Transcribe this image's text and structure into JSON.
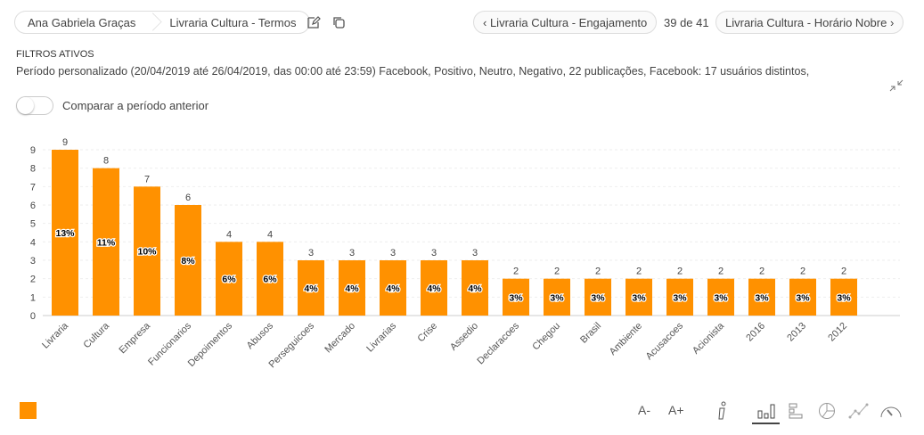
{
  "breadcrumb": {
    "items": [
      "Ana Gabriela Graças",
      "Livraria Cultura - Termos"
    ]
  },
  "nav": {
    "prev": "Livraria Cultura - Engajamento",
    "count": "39 de 41",
    "next": "Livraria Cultura - Horário Nobre"
  },
  "filters": {
    "title": "FILTROS ATIVOS",
    "text": "Período personalizado (20/04/2019 até 26/04/2019, das 00:00 até 23:59) Facebook, Positivo, Neutro, Negativo, 22 publicações, Facebook: 17 usuários distintos,"
  },
  "compare": {
    "label": "Comparar a período anterior",
    "on": false
  },
  "toolbar": {
    "font_minus": "A-",
    "font_plus": "A+"
  },
  "colors": {
    "bar": "#ff9100"
  },
  "chart_data": {
    "type": "bar",
    "categories": [
      "Livraria",
      "Cultura",
      "Empresa",
      "Funcionarios",
      "Depoimentos",
      "Abusos",
      "Perseguicoes",
      "Mercado",
      "Livrarias",
      "Crise",
      "Assedio",
      "Declaracoes",
      "Chegou",
      "Brasil",
      "Ambiente",
      "Acusacoes",
      "Acionista",
      "2016",
      "2013",
      "2012"
    ],
    "values": [
      9,
      8,
      7,
      6,
      4,
      4,
      3,
      3,
      3,
      3,
      3,
      2,
      2,
      2,
      2,
      2,
      2,
      2,
      2,
      2
    ],
    "percent_labels": [
      "13%",
      "11%",
      "10%",
      "8%",
      "6%",
      "6%",
      "4%",
      "4%",
      "4%",
      "4%",
      "4%",
      "3%",
      "3%",
      "3%",
      "3%",
      "3%",
      "3%",
      "3%",
      "3%",
      "3%"
    ],
    "ylim": [
      0,
      9
    ],
    "yticks": [
      0,
      1,
      2,
      3,
      4,
      5,
      6,
      7,
      8,
      9
    ],
    "grid": true,
    "xlabel": "",
    "ylabel": ""
  }
}
